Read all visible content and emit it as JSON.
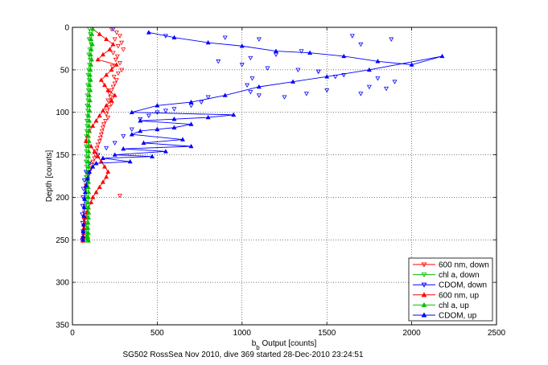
{
  "chart_data": {
    "type": "scatter",
    "caption": "SG502 RossSea Nov 2010, dive 369 started 28-Dec-2010 23:24:51",
    "xlabel_main": "b",
    "xlabel_sub": "b",
    "xlabel_rest": " Output [counts]",
    "ylabel": "Depth [counts]",
    "xlim": [
      0,
      2500
    ],
    "ylim": [
      0,
      350
    ],
    "y_reversed": true,
    "xticks": [
      0,
      500,
      1000,
      1500,
      2000,
      2500
    ],
    "yticks": [
      0,
      50,
      100,
      150,
      200,
      250,
      300,
      350
    ],
    "grid": true,
    "legend_position": "bottom-right",
    "series": [
      {
        "name": "600 nm, down",
        "color": "#ff0000",
        "marker": "triangle-down",
        "x": [
          230,
          260,
          280,
          250,
          290,
          270,
          300,
          240,
          265,
          255,
          280,
          235,
          290,
          270,
          245,
          260,
          250,
          240,
          230,
          220,
          225,
          210,
          230,
          215,
          205,
          200,
          210,
          195,
          185,
          180,
          175,
          170,
          165,
          160,
          150,
          145,
          140,
          135,
          130,
          120,
          115,
          110,
          100,
          95,
          90,
          85,
          80,
          78,
          280,
          75,
          72,
          70,
          68,
          66,
          64,
          62,
          60
        ],
        "y": [
          2,
          6,
          10,
          14,
          18,
          22,
          26,
          30,
          34,
          38,
          42,
          46,
          50,
          54,
          58,
          62,
          66,
          70,
          74,
          78,
          82,
          86,
          90,
          94,
          98,
          102,
          106,
          110,
          114,
          118,
          122,
          126,
          130,
          134,
          138,
          142,
          146,
          150,
          154,
          158,
          162,
          166,
          170,
          174,
          178,
          182,
          186,
          190,
          198,
          202,
          210,
          218,
          226,
          234,
          242,
          248,
          251
        ]
      },
      {
        "name": "chl a, down",
        "color": "#00c000",
        "marker": "triangle-down",
        "x": [
          100,
          105,
          98,
          110,
          102,
          96,
          104,
          100,
          95,
          92,
          98,
          90,
          94,
          88,
          92,
          86,
          90,
          88,
          85,
          86,
          84,
          82,
          85,
          80,
          83,
          82,
          80,
          84,
          82,
          80,
          86,
          82,
          84,
          80,
          82,
          84,
          86,
          88,
          85,
          82,
          84,
          82,
          86,
          84,
          82
        ],
        "y": [
          2,
          8,
          14,
          20,
          26,
          32,
          38,
          44,
          50,
          56,
          62,
          68,
          74,
          80,
          86,
          92,
          98,
          104,
          110,
          116,
          122,
          128,
          134,
          140,
          146,
          152,
          158,
          164,
          170,
          176,
          182,
          188,
          194,
          200,
          206,
          212,
          218,
          224,
          230,
          236,
          240,
          244,
          247,
          249,
          251
        ]
      },
      {
        "name": "CDOM, down",
        "color": "#0000ff",
        "marker": "triangle-down",
        "x": [
          240,
          550,
          900,
          1100,
          1650,
          1880,
          1700,
          1350,
          1200,
          1050,
          860,
          1000,
          1150,
          1330,
          1450,
          1600,
          1800,
          1900,
          1750,
          1500,
          1380,
          1250,
          1100,
          1050,
          1030,
          1060,
          1450,
          1550,
          1850,
          1700,
          800,
          760,
          700,
          600,
          550,
          500,
          450,
          400,
          350,
          300,
          250,
          200,
          150,
          100,
          80,
          70,
          65,
          62,
          60,
          58,
          60,
          62,
          60
        ],
        "y": [
          2,
          10,
          12,
          14,
          10,
          14,
          20,
          28,
          32,
          36,
          40,
          44,
          48,
          50,
          52,
          56,
          60,
          64,
          70,
          74,
          78,
          82,
          80,
          76,
          68,
          60,
          52,
          58,
          72,
          78,
          82,
          88,
          92,
          96,
          98,
          100,
          104,
          108,
          120,
          128,
          136,
          142,
          150,
          160,
          170,
          180,
          190,
          200,
          210,
          220,
          230,
          240,
          250
        ]
      },
      {
        "name": "600 nm, up",
        "color": "#ff0000",
        "marker": "triangle-up",
        "x": [
          120,
          160,
          200,
          240,
          220,
          180,
          150,
          260,
          230,
          200,
          170,
          190,
          210,
          250,
          230,
          200,
          180,
          160,
          140,
          120,
          100,
          90,
          80,
          110,
          130,
          150,
          170,
          190,
          210,
          200,
          180,
          160,
          140,
          120,
          110,
          95,
          85,
          78,
          72,
          68,
          65,
          63,
          62
        ],
        "y": [
          2,
          8,
          14,
          20,
          26,
          32,
          38,
          44,
          50,
          56,
          62,
          68,
          74,
          80,
          86,
          92,
          98,
          104,
          110,
          116,
          122,
          128,
          134,
          140,
          146,
          152,
          158,
          164,
          170,
          176,
          182,
          188,
          194,
          200,
          206,
          212,
          218,
          224,
          230,
          236,
          242,
          247,
          251
        ]
      },
      {
        "name": "chl a, up",
        "color": "#00c000",
        "marker": "triangle-up",
        "x": [
          120,
          115,
          110,
          118,
          112,
          108,
          114,
          110,
          106,
          104,
          108,
          102,
          106,
          100,
          104,
          98,
          102,
          96,
          100,
          98,
          96,
          95,
          98,
          94,
          97,
          95,
          93,
          96,
          94,
          92,
          95,
          93,
          96,
          94,
          92,
          94,
          96,
          95,
          93,
          92,
          94,
          92,
          95
        ],
        "y": [
          2,
          8,
          14,
          20,
          26,
          32,
          38,
          44,
          50,
          56,
          62,
          68,
          74,
          80,
          86,
          92,
          98,
          104,
          110,
          116,
          122,
          128,
          134,
          140,
          146,
          152,
          158,
          164,
          170,
          176,
          182,
          188,
          194,
          200,
          206,
          212,
          218,
          224,
          230,
          236,
          242,
          247,
          251
        ]
      },
      {
        "name": "CDOM, up",
        "color": "#0000ff",
        "marker": "triangle-up",
        "x": [
          450,
          600,
          800,
          1000,
          1200,
          1400,
          1600,
          1800,
          2000,
          2180,
          1750,
          1500,
          1300,
          1100,
          900,
          700,
          500,
          350,
          950,
          800,
          600,
          400,
          700,
          600,
          500,
          400,
          350,
          650,
          420,
          700,
          300,
          550,
          250,
          470,
          180,
          340,
          140,
          120,
          100,
          90,
          80,
          75,
          72,
          70,
          68,
          66,
          64,
          63,
          62
        ],
        "y": [
          6,
          12,
          18,
          22,
          28,
          30,
          34,
          40,
          44,
          34,
          50,
          58,
          64,
          70,
          80,
          88,
          92,
          100,
          103,
          106,
          108,
          110,
          114,
          118,
          120,
          122,
          126,
          132,
          136,
          140,
          143,
          146,
          150,
          152,
          154,
          158,
          160,
          164,
          170,
          178,
          186,
          194,
          202,
          212,
          222,
          232,
          240,
          246,
          250
        ]
      }
    ]
  }
}
